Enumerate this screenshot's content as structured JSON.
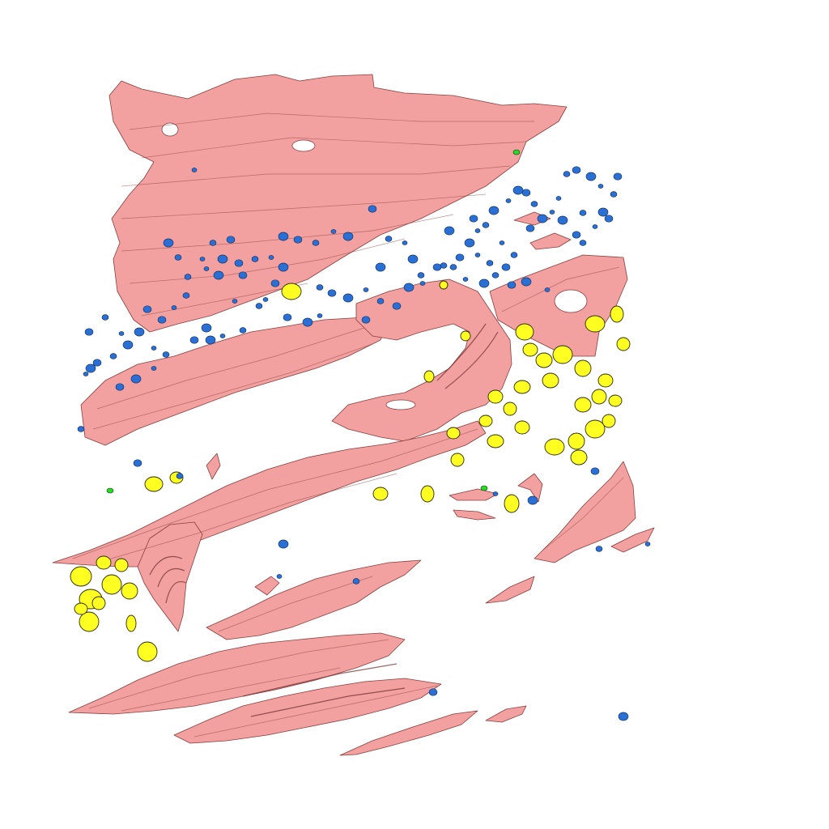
{
  "scene": {
    "background_color": "#ffffff",
    "segmentation_classes": [
      {
        "class_key": "fibers",
        "color": "#f2a0a0",
        "outline_color": "#8a3d3d"
      },
      {
        "class_key": "large_cells",
        "color": "#ffff22",
        "outline_color": "#2b2b00"
      },
      {
        "class_key": "small_particles",
        "color": "#2a6fd6",
        "outline_color": "#0d2a55"
      },
      {
        "class_key": "rare_particles",
        "color": "#22dd22",
        "outline_color": "#0a3d0a"
      }
    ]
  }
}
